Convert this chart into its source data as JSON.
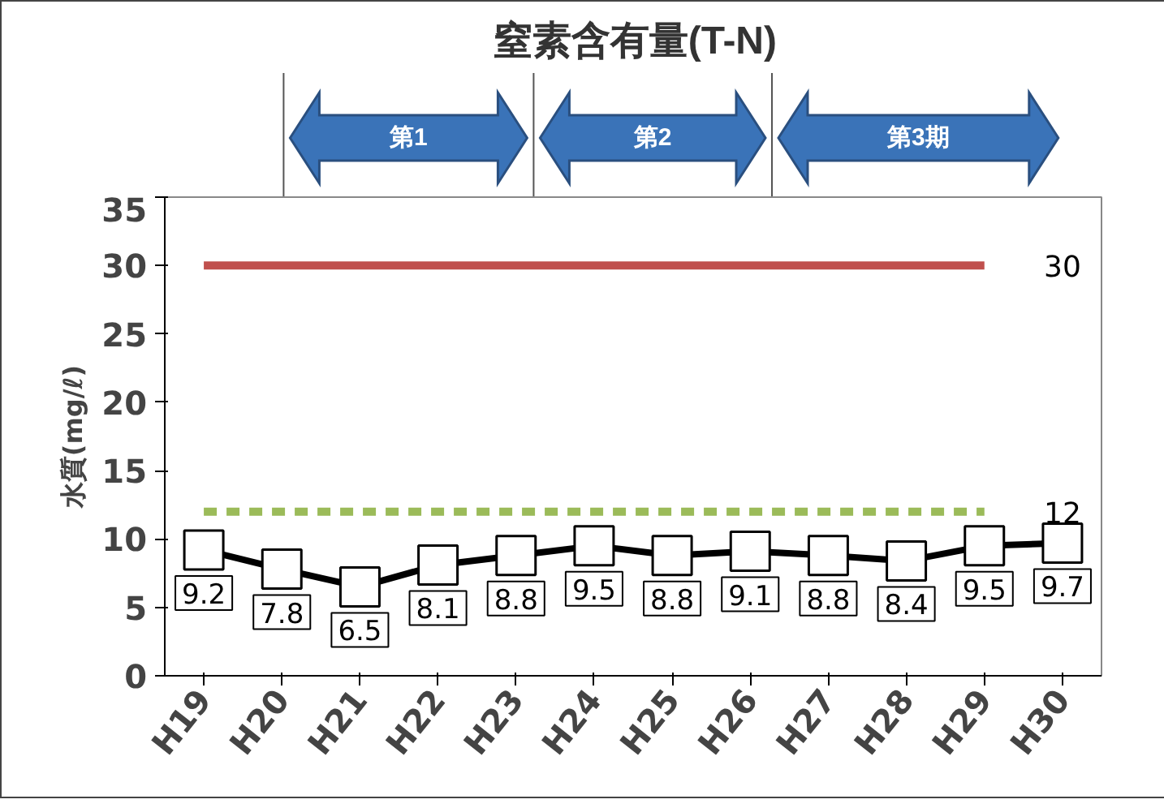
{
  "chart_data": {
    "type": "line",
    "title": "窒素含有量(T-N)",
    "ylabel": "水質(mg/ℓ)",
    "categories": [
      "H19",
      "H20",
      "H21",
      "H22",
      "H23",
      "H24",
      "H25",
      "H26",
      "H27",
      "H28",
      "H29",
      "H30"
    ],
    "series": [
      {
        "color": "#000000",
        "values": [
          9.2,
          7.8,
          6.5,
          8.1,
          8.8,
          9.5,
          8.8,
          9.1,
          8.8,
          8.4,
          9.5,
          9.7
        ]
      }
    ],
    "ylim": [
      0,
      35
    ],
    "yticks": [
      0,
      5,
      10,
      15,
      20,
      25,
      30,
      35
    ],
    "grid": false,
    "marker": "square",
    "line_style": "solid",
    "data_labels": true,
    "ref_lines": [
      {
        "axis": "y",
        "value": 30,
        "label": "30",
        "color": "#c0504d",
        "line_style": "solid"
      },
      {
        "axis": "y",
        "value": 12,
        "label": "12",
        "color": "#9bbb59",
        "line_style": "dashed"
      }
    ],
    "annotations": [
      "第1",
      "第2",
      "第3期"
    ]
  }
}
